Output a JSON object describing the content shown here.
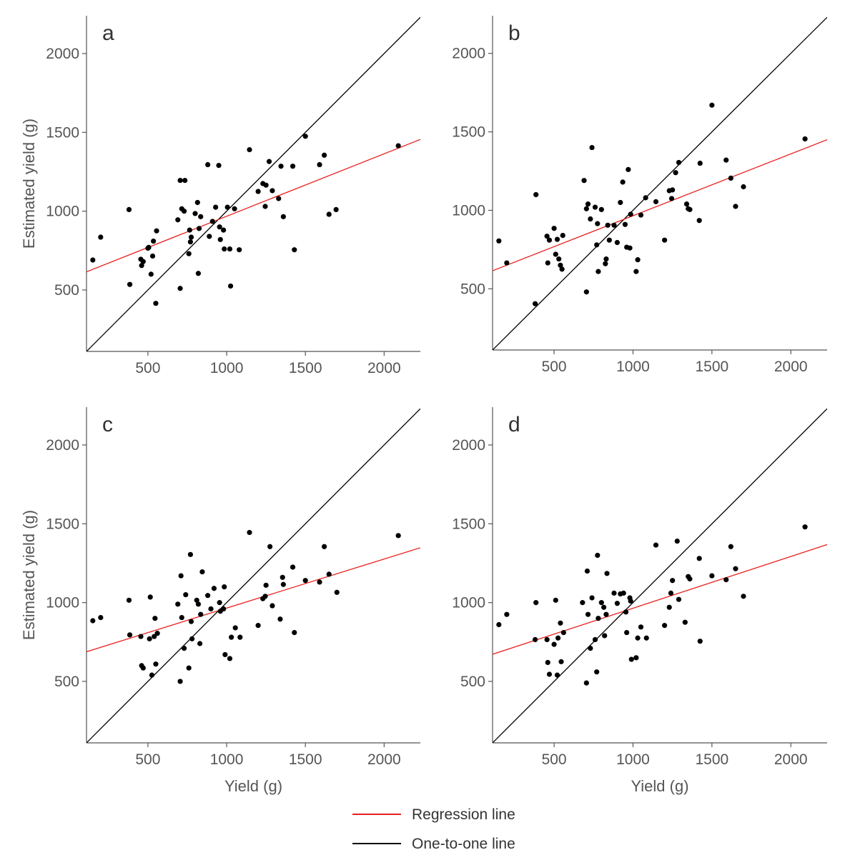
{
  "legend": {
    "regression_label": "Regression line",
    "one_to_one_label": "One-to-one line"
  },
  "colors": {
    "regression": "#e8201e",
    "one_to_one": "#000000",
    "points": "#000000",
    "axis": "#555555"
  },
  "chart_data": [
    {
      "type": "scatter",
      "panel_label": "a",
      "xlabel": "",
      "ylabel": "Estimated yield (g)",
      "xlim": [
        110,
        2230
      ],
      "ylim": [
        110,
        2240
      ],
      "xticks": [
        500,
        1000,
        1500,
        2000
      ],
      "yticks": [
        500,
        1000,
        1500,
        2000
      ],
      "regression_line": {
        "x": [
          110,
          2230
        ],
        "y": [
          615,
          1455
        ]
      },
      "one_to_one_line": {
        "x": [
          110,
          2230
        ],
        "y": [
          110,
          2230
        ]
      },
      "points": [
        [
          150,
          690
        ],
        [
          200,
          835
        ],
        [
          380,
          1010
        ],
        [
          385,
          535
        ],
        [
          455,
          695
        ],
        [
          460,
          655
        ],
        [
          470,
          680
        ],
        [
          500,
          765
        ],
        [
          505,
          770
        ],
        [
          520,
          600
        ],
        [
          530,
          715
        ],
        [
          535,
          810
        ],
        [
          550,
          415
        ],
        [
          555,
          875
        ],
        [
          690,
          945
        ],
        [
          705,
          510
        ],
        [
          705,
          1195
        ],
        [
          715,
          1015
        ],
        [
          730,
          1000
        ],
        [
          735,
          1195
        ],
        [
          760,
          730
        ],
        [
          765,
          880
        ],
        [
          770,
          805
        ],
        [
          775,
          835
        ],
        [
          800,
          985
        ],
        [
          815,
          1055
        ],
        [
          820,
          605
        ],
        [
          825,
          890
        ],
        [
          835,
          965
        ],
        [
          880,
          1295
        ],
        [
          890,
          840
        ],
        [
          910,
          935
        ],
        [
          930,
          1025
        ],
        [
          950,
          1290
        ],
        [
          955,
          900
        ],
        [
          960,
          820
        ],
        [
          980,
          880
        ],
        [
          985,
          760
        ],
        [
          1005,
          1025
        ],
        [
          1020,
          760
        ],
        [
          1025,
          525
        ],
        [
          1050,
          1015
        ],
        [
          1080,
          755
        ],
        [
          1145,
          1390
        ],
        [
          1200,
          1125
        ],
        [
          1230,
          1175
        ],
        [
          1245,
          1030
        ],
        [
          1250,
          1165
        ],
        [
          1270,
          1315
        ],
        [
          1290,
          1130
        ],
        [
          1330,
          1080
        ],
        [
          1345,
          1285
        ],
        [
          1360,
          965
        ],
        [
          1420,
          1285
        ],
        [
          1430,
          755
        ],
        [
          1500,
          1475
        ],
        [
          1590,
          1295
        ],
        [
          1620,
          1355
        ],
        [
          1650,
          980
        ],
        [
          1695,
          1010
        ],
        [
          2090,
          1415
        ]
      ]
    },
    {
      "type": "scatter",
      "panel_label": "b",
      "xlabel": "",
      "ylabel": "",
      "xlim": [
        110,
        2230
      ],
      "ylim": [
        110,
        2240
      ],
      "xticks": [
        500,
        1000,
        1500,
        2000
      ],
      "yticks": [
        500,
        1000,
        1500,
        2000
      ],
      "regression_line": {
        "x": [
          110,
          2230
        ],
        "y": [
          615,
          1450
        ]
      },
      "one_to_one_line": {
        "x": [
          110,
          2230
        ],
        "y": [
          110,
          2230
        ]
      },
      "points": [
        [
          150,
          805
        ],
        [
          200,
          665
        ],
        [
          380,
          405
        ],
        [
          385,
          1100
        ],
        [
          455,
          835
        ],
        [
          460,
          665
        ],
        [
          470,
          810
        ],
        [
          500,
          885
        ],
        [
          510,
          720
        ],
        [
          520,
          815
        ],
        [
          530,
          690
        ],
        [
          540,
          650
        ],
        [
          550,
          625
        ],
        [
          555,
          840
        ],
        [
          690,
          1190
        ],
        [
          705,
          480
        ],
        [
          705,
          1010
        ],
        [
          715,
          1040
        ],
        [
          730,
          945
        ],
        [
          740,
          1400
        ],
        [
          760,
          1020
        ],
        [
          770,
          780
        ],
        [
          775,
          915
        ],
        [
          780,
          610
        ],
        [
          800,
          1005
        ],
        [
          825,
          660
        ],
        [
          830,
          690
        ],
        [
          840,
          905
        ],
        [
          850,
          810
        ],
        [
          880,
          905
        ],
        [
          900,
          795
        ],
        [
          920,
          1050
        ],
        [
          935,
          1180
        ],
        [
          950,
          910
        ],
        [
          960,
          765
        ],
        [
          970,
          1260
        ],
        [
          980,
          760
        ],
        [
          985,
          975
        ],
        [
          1020,
          610
        ],
        [
          1030,
          685
        ],
        [
          1050,
          970
        ],
        [
          1080,
          1080
        ],
        [
          1145,
          1055
        ],
        [
          1200,
          810
        ],
        [
          1230,
          1125
        ],
        [
          1245,
          1075
        ],
        [
          1250,
          1130
        ],
        [
          1270,
          1240
        ],
        [
          1290,
          1305
        ],
        [
          1340,
          1040
        ],
        [
          1350,
          1010
        ],
        [
          1360,
          1005
        ],
        [
          1420,
          935
        ],
        [
          1425,
          1300
        ],
        [
          1500,
          1670
        ],
        [
          1590,
          1320
        ],
        [
          1620,
          1205
        ],
        [
          1650,
          1025
        ],
        [
          1700,
          1150
        ],
        [
          2090,
          1455
        ]
      ]
    },
    {
      "type": "scatter",
      "panel_label": "c",
      "xlabel": "Yield (g)",
      "ylabel": "Estimated yield (g)",
      "xlim": [
        110,
        2230
      ],
      "ylim": [
        110,
        2240
      ],
      "xticks": [
        500,
        1000,
        1500,
        2000
      ],
      "yticks": [
        500,
        1000,
        1500,
        2000
      ],
      "regression_line": {
        "x": [
          110,
          2230
        ],
        "y": [
          688,
          1348
        ]
      },
      "one_to_one_line": {
        "x": [
          110,
          2230
        ],
        "y": [
          110,
          2230
        ]
      },
      "points": [
        [
          150,
          885
        ],
        [
          200,
          905
        ],
        [
          380,
          1015
        ],
        [
          385,
          795
        ],
        [
          455,
          785
        ],
        [
          460,
          600
        ],
        [
          470,
          585
        ],
        [
          510,
          770
        ],
        [
          515,
          1035
        ],
        [
          525,
          540
        ],
        [
          540,
          785
        ],
        [
          545,
          900
        ],
        [
          550,
          610
        ],
        [
          560,
          805
        ],
        [
          690,
          990
        ],
        [
          705,
          500
        ],
        [
          710,
          1170
        ],
        [
          715,
          905
        ],
        [
          730,
          710
        ],
        [
          740,
          1050
        ],
        [
          760,
          585
        ],
        [
          770,
          1305
        ],
        [
          775,
          880
        ],
        [
          780,
          770
        ],
        [
          810,
          1015
        ],
        [
          820,
          990
        ],
        [
          830,
          740
        ],
        [
          835,
          925
        ],
        [
          845,
          1195
        ],
        [
          880,
          1045
        ],
        [
          900,
          960
        ],
        [
          920,
          1090
        ],
        [
          955,
          1000
        ],
        [
          960,
          945
        ],
        [
          980,
          960
        ],
        [
          985,
          1100
        ],
        [
          990,
          670
        ],
        [
          1020,
          645
        ],
        [
          1030,
          780
        ],
        [
          1055,
          840
        ],
        [
          1085,
          780
        ],
        [
          1145,
          1445
        ],
        [
          1200,
          855
        ],
        [
          1230,
          1025
        ],
        [
          1245,
          1040
        ],
        [
          1250,
          1110
        ],
        [
          1275,
          1355
        ],
        [
          1290,
          980
        ],
        [
          1340,
          895
        ],
        [
          1355,
          1160
        ],
        [
          1360,
          1115
        ],
        [
          1420,
          1225
        ],
        [
          1430,
          810
        ],
        [
          1500,
          1140
        ],
        [
          1590,
          1130
        ],
        [
          1620,
          1355
        ],
        [
          1650,
          1180
        ],
        [
          1700,
          1065
        ],
        [
          2090,
          1425
        ]
      ]
    },
    {
      "type": "scatter",
      "panel_label": "d",
      "xlabel": "Yield (g)",
      "ylabel": "",
      "xlim": [
        110,
        2230
      ],
      "ylim": [
        110,
        2240
      ],
      "xticks": [
        500,
        1000,
        1500,
        2000
      ],
      "yticks": [
        500,
        1000,
        1500,
        2000
      ],
      "regression_line": {
        "x": [
          110,
          2230
        ],
        "y": [
          672,
          1368
        ]
      },
      "one_to_one_line": {
        "x": [
          110,
          2230
        ],
        "y": [
          110,
          2230
        ]
      },
      "points": [
        [
          150,
          860
        ],
        [
          200,
          925
        ],
        [
          380,
          765
        ],
        [
          385,
          1000
        ],
        [
          455,
          765
        ],
        [
          460,
          620
        ],
        [
          470,
          545
        ],
        [
          500,
          735
        ],
        [
          510,
          1015
        ],
        [
          520,
          540
        ],
        [
          525,
          775
        ],
        [
          540,
          870
        ],
        [
          545,
          625
        ],
        [
          560,
          810
        ],
        [
          680,
          1000
        ],
        [
          705,
          490
        ],
        [
          710,
          1200
        ],
        [
          715,
          925
        ],
        [
          730,
          710
        ],
        [
          740,
          1030
        ],
        [
          760,
          765
        ],
        [
          770,
          560
        ],
        [
          775,
          1300
        ],
        [
          780,
          900
        ],
        [
          800,
          1000
        ],
        [
          815,
          970
        ],
        [
          820,
          790
        ],
        [
          830,
          925
        ],
        [
          835,
          1185
        ],
        [
          880,
          1060
        ],
        [
          900,
          995
        ],
        [
          920,
          1055
        ],
        [
          940,
          1060
        ],
        [
          955,
          940
        ],
        [
          960,
          810
        ],
        [
          980,
          1030
        ],
        [
          985,
          1010
        ],
        [
          990,
          640
        ],
        [
          1020,
          650
        ],
        [
          1030,
          775
        ],
        [
          1050,
          845
        ],
        [
          1085,
          775
        ],
        [
          1145,
          1365
        ],
        [
          1200,
          855
        ],
        [
          1230,
          970
        ],
        [
          1240,
          1060
        ],
        [
          1250,
          1140
        ],
        [
          1280,
          1390
        ],
        [
          1290,
          1020
        ],
        [
          1330,
          875
        ],
        [
          1350,
          1165
        ],
        [
          1360,
          1150
        ],
        [
          1420,
          1280
        ],
        [
          1425,
          755
        ],
        [
          1500,
          1170
        ],
        [
          1590,
          1145
        ],
        [
          1620,
          1355
        ],
        [
          1650,
          1215
        ],
        [
          1700,
          1040
        ],
        [
          2090,
          1480
        ]
      ]
    }
  ]
}
